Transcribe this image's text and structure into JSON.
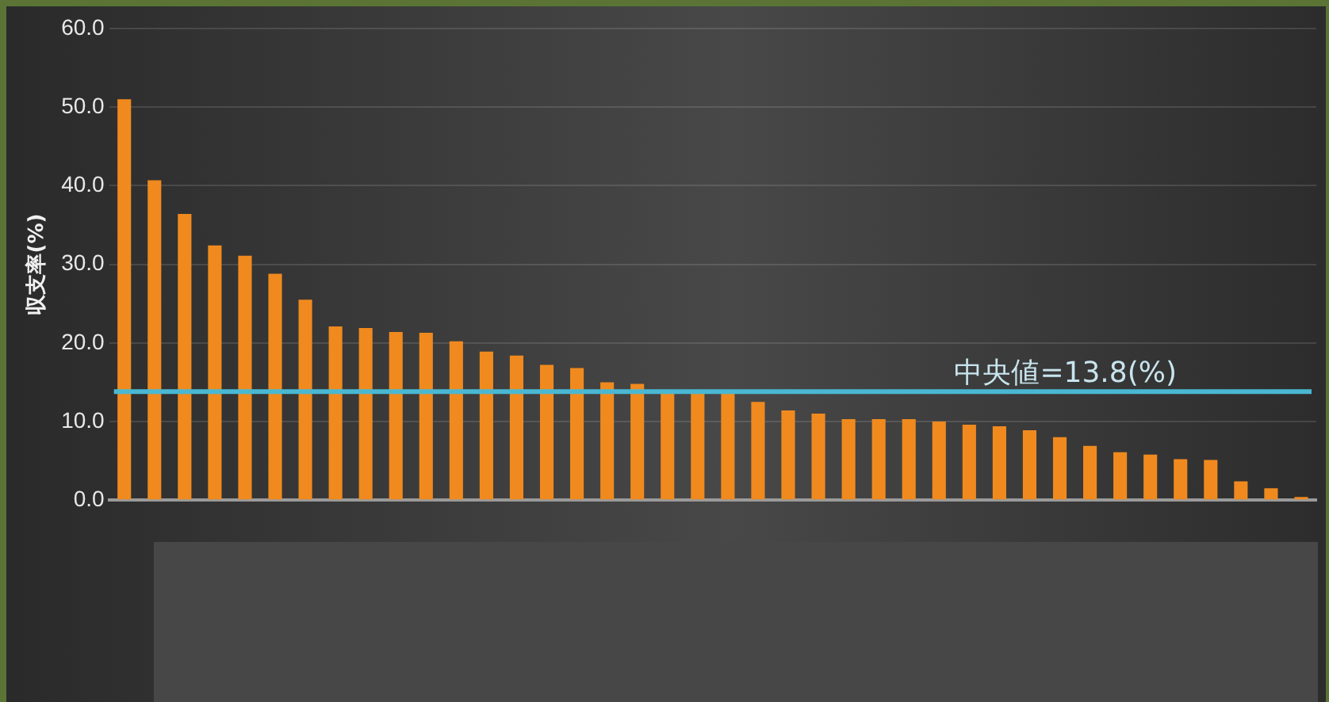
{
  "chart_data": {
    "type": "bar",
    "ylabel": "収支率(%)",
    "categories": [
      null,
      null,
      null,
      null,
      null,
      null,
      null,
      null,
      null,
      null,
      null,
      null,
      null,
      null,
      null,
      null,
      null,
      null,
      null,
      null,
      null,
      null,
      null,
      null,
      null,
      null,
      null,
      null,
      null,
      null,
      null,
      null,
      null,
      null,
      null,
      null,
      null,
      null,
      null,
      null
    ],
    "values": [
      51.0,
      40.7,
      36.4,
      32.4,
      31.1,
      28.8,
      25.5,
      22.1,
      21.9,
      21.4,
      21.3,
      20.2,
      18.9,
      18.4,
      17.2,
      16.8,
      15.0,
      14.8,
      14.0,
      13.9,
      13.7,
      12.5,
      11.4,
      11.0,
      10.3,
      10.3,
      10.3,
      10.0,
      9.6,
      9.4,
      8.9,
      8.0,
      6.9,
      6.1,
      5.8,
      5.2,
      5.1,
      2.4,
      1.5,
      0.4
    ],
    "color": "#f08a1e",
    "ylim": [
      0,
      60
    ],
    "yticks": [
      {
        "value": 0,
        "label": "0.0"
      },
      {
        "value": 10,
        "label": "10.0"
      },
      {
        "value": 20,
        "label": "20.0"
      },
      {
        "value": 30,
        "label": "30.0"
      },
      {
        "value": 40,
        "label": "40.0"
      },
      {
        "value": 50,
        "label": "50.0"
      },
      {
        "value": 60,
        "label": "60.0"
      }
    ],
    "grid": "y",
    "legend": false,
    "ref_lines": [
      {
        "axis": "y",
        "value": 13.8,
        "label": "中央値=13.8(%)",
        "color": "#4ab8d2"
      }
    ]
  }
}
